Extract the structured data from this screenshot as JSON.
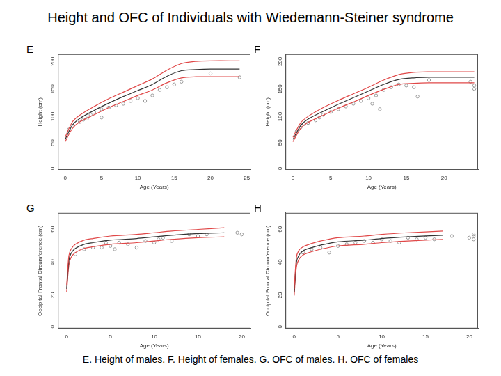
{
  "title": "Height and OFC of Individuals with Wiedemann-Steiner syndrome",
  "caption": "E. Height of males.  F. Height of females. G. OFC of males. H. OFC of females",
  "chart_data": [
    {
      "type": "scatter",
      "title": "E",
      "x_label": "Age (Years)",
      "y_label": "Height (cm)",
      "xlim": [
        -1,
        25.5
      ],
      "ylim": [
        -5,
        205
      ],
      "xticks": [
        0,
        5,
        10,
        15,
        20,
        25
      ],
      "yticks": [
        0,
        50,
        100,
        150,
        200
      ],
      "grid": false,
      "series": [
        {
          "type": "line",
          "color": "#e04848",
          "marker": "none",
          "line_style": "solid",
          "x": [
            0,
            1,
            2,
            4,
            6,
            8,
            10,
            12,
            14,
            16,
            18,
            20,
            24
          ],
          "values": [
            54,
            82,
            94,
            110,
            124,
            136,
            148,
            160,
            176,
            188,
            192,
            193,
            193
          ]
        },
        {
          "type": "line",
          "color": "#333333",
          "marker": "none",
          "line_style": "solid",
          "x": [
            0,
            1,
            2,
            4,
            6,
            8,
            10,
            12,
            14,
            16,
            18,
            20,
            24
          ],
          "values": [
            50,
            76,
            88,
            103,
            116,
            128,
            139,
            150,
            165,
            175,
            177,
            178,
            178
          ]
        },
        {
          "type": "line",
          "color": "#e04848",
          "marker": "none",
          "line_style": "solid",
          "x": [
            0,
            1,
            2,
            4,
            6,
            8,
            10,
            12,
            14,
            16,
            18,
            20,
            24
          ],
          "values": [
            46,
            70,
            82,
            95,
            108,
            119,
            130,
            140,
            153,
            162,
            164,
            164,
            164
          ]
        },
        {
          "type": "scatter",
          "color": "#999999",
          "marker": "circle",
          "line_style": "none",
          "x": [
            0.5,
            1,
            2,
            2.5,
            3,
            3.5,
            4,
            5,
            5,
            6,
            7,
            8,
            9,
            10,
            11,
            12,
            13,
            14,
            15,
            16,
            20,
            24
          ],
          "values": [
            68,
            75,
            82,
            86,
            88,
            95,
            100,
            90,
            105,
            108,
            112,
            115,
            120,
            125,
            120,
            130,
            140,
            145,
            150,
            155,
            170,
            163
          ]
        }
      ]
    },
    {
      "type": "scatter",
      "title": "F",
      "x_label": "Age (Years)",
      "y_label": "Height (cm)",
      "xlim": [
        -1,
        24.5
      ],
      "ylim": [
        -5,
        205
      ],
      "xticks": [
        0,
        5,
        10,
        15,
        20
      ],
      "yticks": [
        0,
        50,
        100,
        150,
        200
      ],
      "grid": false,
      "series": [
        {
          "type": "line",
          "color": "#e04848",
          "marker": "none",
          "line_style": "solid",
          "x": [
            0,
            1,
            2,
            4,
            6,
            8,
            10,
            12,
            14,
            16,
            18,
            20,
            24
          ],
          "values": [
            54,
            80,
            92,
            108,
            121,
            133,
            145,
            158,
            168,
            172,
            173,
            173,
            173
          ]
        },
        {
          "type": "line",
          "color": "#333333",
          "marker": "none",
          "line_style": "solid",
          "x": [
            0,
            1,
            2,
            4,
            6,
            8,
            10,
            12,
            14,
            16,
            18,
            20,
            24
          ],
          "values": [
            50,
            75,
            87,
            101,
            114,
            126,
            138,
            150,
            159,
            162,
            163,
            163,
            163
          ]
        },
        {
          "type": "line",
          "color": "#e04848",
          "marker": "none",
          "line_style": "solid",
          "x": [
            0,
            1,
            2,
            4,
            6,
            8,
            10,
            12,
            14,
            16,
            18,
            20,
            24
          ],
          "values": [
            46,
            70,
            81,
            94,
            107,
            118,
            130,
            141,
            150,
            152,
            153,
            153,
            153
          ]
        },
        {
          "type": "scatter",
          "color": "#999999",
          "marker": "circle",
          "line_style": "none",
          "x": [
            0.5,
            1,
            1.5,
            2,
            3,
            3.5,
            4,
            5,
            6,
            7,
            8,
            9,
            10,
            10.5,
            11,
            11.5,
            12,
            13,
            14,
            15,
            16,
            16.5,
            18,
            23.5,
            24,
            24
          ],
          "values": [
            65,
            72,
            78,
            80,
            85,
            90,
            95,
            100,
            105,
            110,
            115,
            120,
            125,
            115,
            130,
            105,
            140,
            145,
            150,
            148,
            145,
            128,
            158,
            155,
            148,
            142
          ]
        }
      ]
    },
    {
      "type": "scatter",
      "title": "G",
      "x_label": "Age (Years)",
      "y_label": "Occipital Frontal Circumference (cm)",
      "xlim": [
        -1,
        21
      ],
      "ylim": [
        -2,
        68
      ],
      "xticks": [
        0,
        5,
        10,
        15,
        20
      ],
      "yticks": [
        0,
        20,
        40,
        60
      ],
      "grid": false,
      "series": [
        {
          "type": "line",
          "color": "#e04848",
          "marker": "none",
          "line_style": "solid",
          "x": [
            0,
            0.25,
            0.5,
            1,
            2,
            3,
            5,
            8,
            10,
            12,
            15,
            18
          ],
          "values": [
            24,
            42,
            46,
            49,
            51.5,
            52.5,
            54,
            55,
            56,
            57,
            58,
            59
          ]
        },
        {
          "type": "line",
          "color": "#333333",
          "marker": "none",
          "line_style": "solid",
          "x": [
            0,
            0.25,
            0.5,
            1,
            2,
            3,
            5,
            8,
            10,
            12,
            15,
            18
          ],
          "values": [
            22,
            39,
            43.5,
            46.5,
            49,
            50,
            51.5,
            52.5,
            53.5,
            54.5,
            55.5,
            56
          ]
        },
        {
          "type": "line",
          "color": "#e04848",
          "marker": "none",
          "line_style": "solid",
          "x": [
            0,
            0.25,
            0.5,
            1,
            2,
            3,
            5,
            8,
            10,
            12,
            15,
            18
          ],
          "values": [
            20,
            36,
            41,
            44,
            46.5,
            47.5,
            49,
            50,
            51,
            52,
            53,
            53.5
          ]
        },
        {
          "type": "scatter",
          "color": "#999999",
          "marker": "circle",
          "line_style": "none",
          "x": [
            1,
            2,
            3,
            4,
            4.5,
            5,
            5.5,
            6,
            7,
            8,
            9,
            10,
            10.5,
            11,
            12,
            14,
            15,
            16,
            19.5,
            20
          ],
          "values": [
            43,
            46,
            47,
            47,
            50,
            48,
            46,
            50,
            49,
            47,
            51,
            50,
            52,
            53,
            51,
            55,
            54,
            55,
            56,
            55
          ]
        }
      ]
    },
    {
      "type": "scatter",
      "title": "H",
      "x_label": "Age (Years)",
      "y_label": "Occipital Frontal Circumference (cm)",
      "xlim": [
        -1,
        21
      ],
      "ylim": [
        -2,
        68
      ],
      "xticks": [
        0,
        5,
        10,
        15,
        20
      ],
      "yticks": [
        0,
        20,
        40,
        60
      ],
      "grid": false,
      "series": [
        {
          "type": "line",
          "color": "#e04848",
          "marker": "none",
          "line_style": "solid",
          "x": [
            0,
            0.25,
            0.5,
            1,
            2,
            3,
            5,
            8,
            10,
            13,
            17
          ],
          "values": [
            22,
            41,
            45,
            47.5,
            49.5,
            51,
            53,
            54,
            55,
            56,
            57
          ]
        },
        {
          "type": "line",
          "color": "#333333",
          "marker": "none",
          "line_style": "solid",
          "x": [
            0,
            0.25,
            0.5,
            1,
            2,
            3,
            5,
            8,
            10,
            13,
            17
          ],
          "values": [
            20,
            38,
            42,
            45,
            47,
            48.5,
            50.5,
            51.5,
            52.5,
            53.5,
            54.5
          ]
        },
        {
          "type": "line",
          "color": "#e04848",
          "marker": "none",
          "line_style": "solid",
          "x": [
            0,
            0.25,
            0.5,
            1,
            2,
            3,
            5,
            8,
            10,
            13,
            17
          ],
          "values": [
            18,
            35,
            39.5,
            42.5,
            44.5,
            46,
            48,
            49,
            50,
            51,
            52
          ]
        },
        {
          "type": "scatter",
          "color": "#999999",
          "marker": "circle",
          "line_style": "none",
          "x": [
            1,
            2,
            3,
            4,
            5,
            6,
            7,
            8,
            9,
            10,
            11,
            12,
            13,
            14,
            15,
            16,
            18,
            20,
            20.5,
            20.5,
            20.5
          ],
          "values": [
            44,
            46,
            47,
            44,
            48,
            49,
            50,
            51,
            50,
            52,
            51,
            50,
            53,
            52,
            53,
            52,
            54,
            53,
            54,
            52,
            55
          ]
        }
      ]
    }
  ]
}
